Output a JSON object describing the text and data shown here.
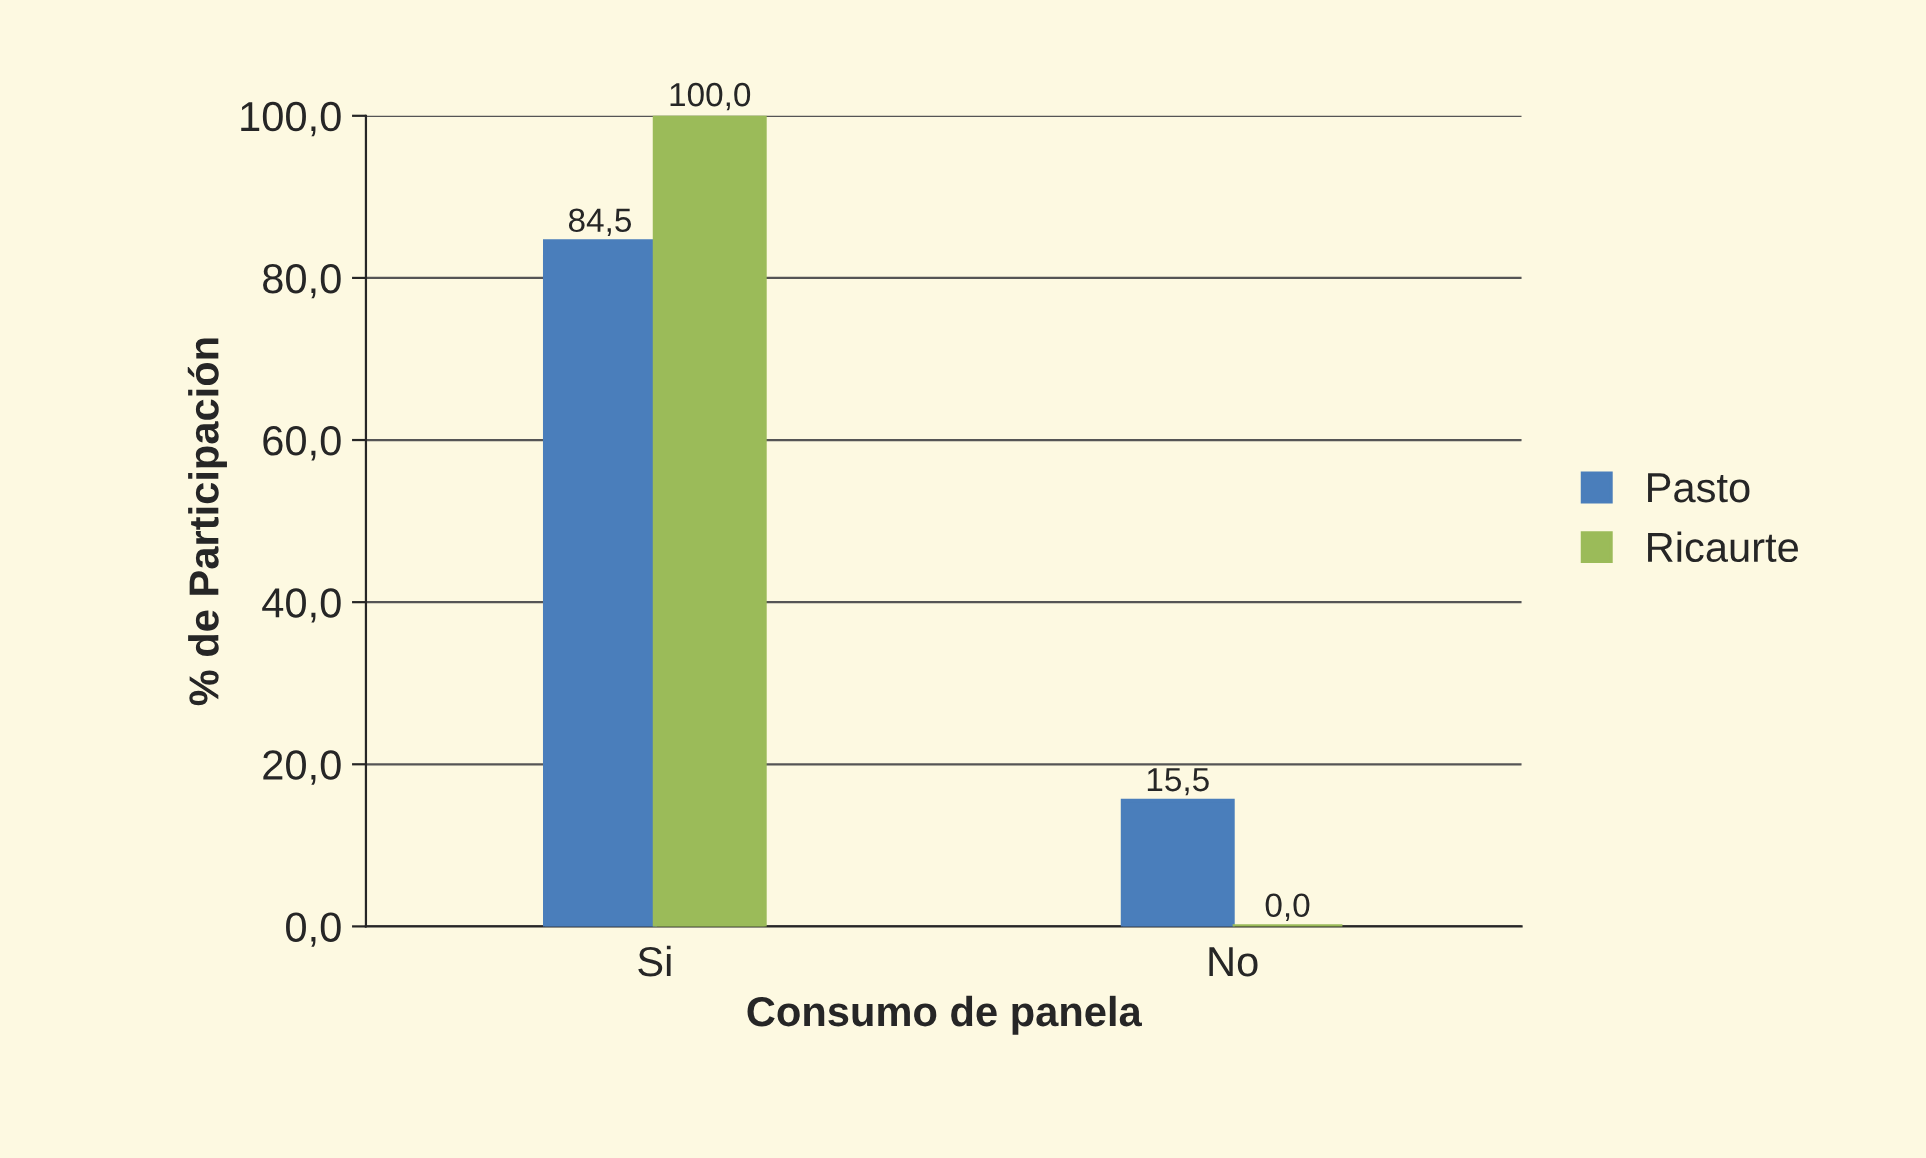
{
  "chart_data": {
    "type": "bar",
    "xlabel": "Consumo de panela",
    "ylabel": "% de Participación",
    "categories": [
      "Si",
      "No"
    ],
    "series": [
      {
        "name": "Pasto",
        "color": "#4a7ebb",
        "values": [
          84.5,
          15.5
        ],
        "value_labels": [
          "84,5",
          "15,5"
        ]
      },
      {
        "name": "Ricaurte",
        "color": "#9bbb59",
        "values": [
          100.0,
          0.0
        ],
        "value_labels": [
          "100,0",
          "0,0"
        ]
      }
    ],
    "ylim": [
      0,
      100
    ],
    "yticks": [
      {
        "value": 0,
        "label": "0,0"
      },
      {
        "value": 20,
        "label": "20,0"
      },
      {
        "value": 40,
        "label": "40,0"
      },
      {
        "value": 60,
        "label": "60,0"
      },
      {
        "value": 80,
        "label": "80,0"
      },
      {
        "value": 100,
        "label": "100,0"
      }
    ],
    "grid": "y",
    "legend": "right"
  }
}
